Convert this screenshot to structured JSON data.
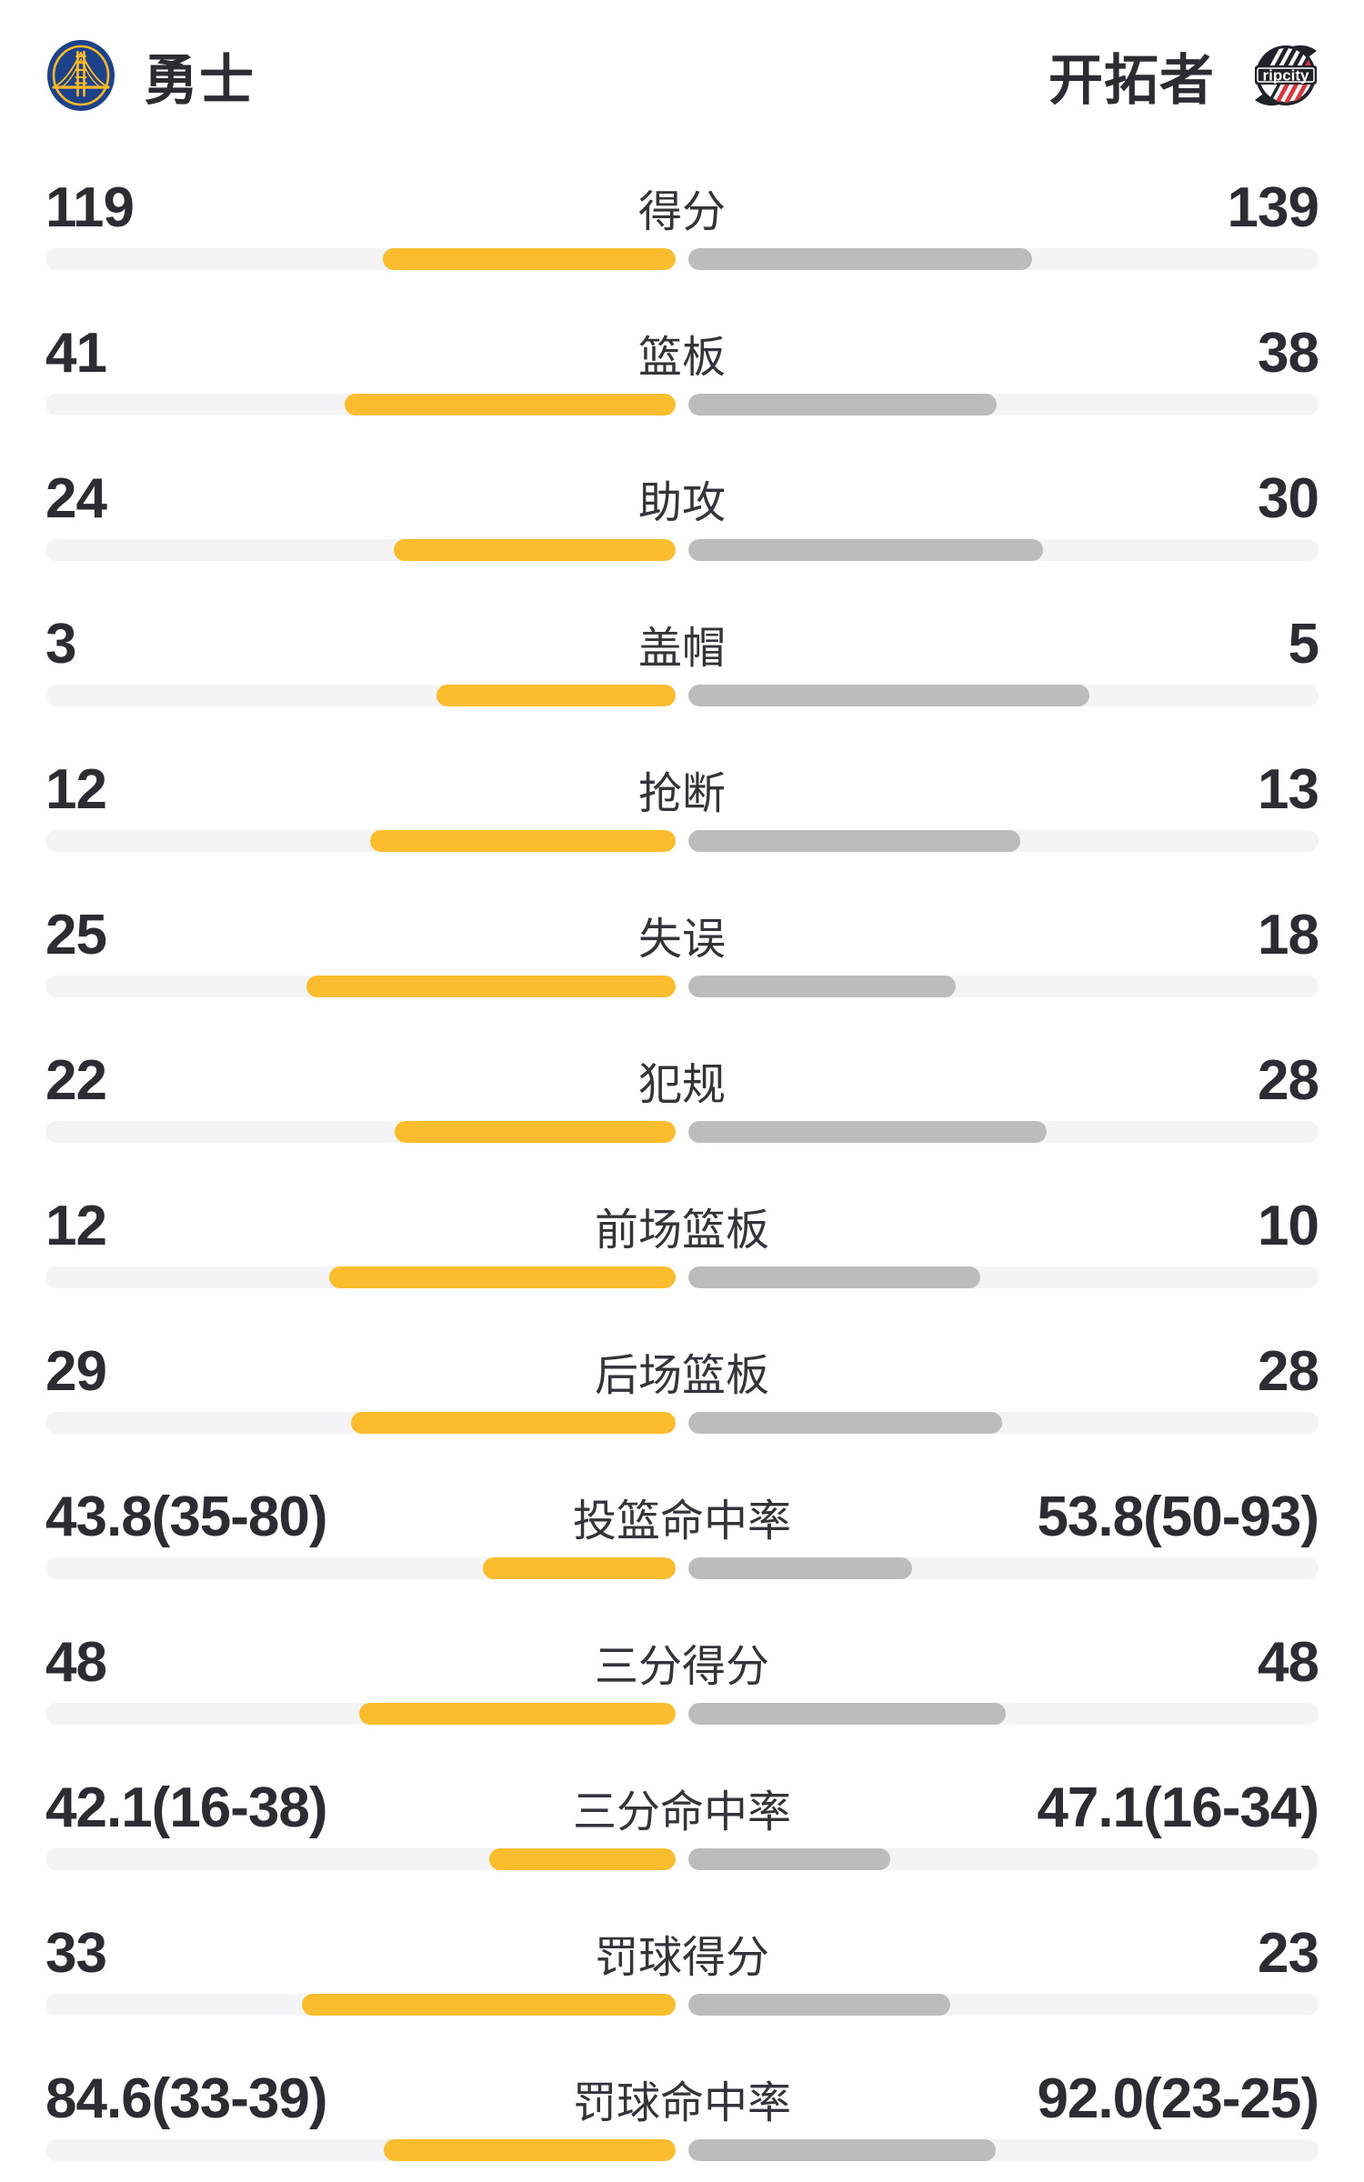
{
  "header": {
    "left_team": {
      "name": "勇士"
    },
    "right_team": {
      "name": "开拓者",
      "logo_text": "ripcity"
    }
  },
  "colors": {
    "home_bar": "#FBBD2E",
    "away_bar": "#BCBCBC",
    "bar_track": "#F4F4F6",
    "text": "#2B2D33",
    "warriors_blue": "#1D428A",
    "warriors_gold": "#FDB927",
    "blazers_red": "#D8373F",
    "blazers_black": "#20242A"
  },
  "chart_data": {
    "type": "bar",
    "legend": [
      "勇士",
      "开拓者"
    ],
    "legend_position": "top",
    "grid": false,
    "categories": [
      "得分",
      "篮板",
      "助攻",
      "盖帽",
      "抢断",
      "失误",
      "犯规",
      "前场篮板",
      "后场篮板",
      "投篮命中率",
      "三分得分",
      "三分命中率",
      "罚球得分",
      "罚球命中率"
    ],
    "series": [
      {
        "name": "勇士",
        "values": [
          119,
          41,
          24,
          3,
          12,
          25,
          22,
          12,
          29,
          43.8,
          48,
          42.1,
          33,
          84.6
        ]
      },
      {
        "name": "开拓者",
        "values": [
          139,
          38,
          30,
          5,
          13,
          18,
          28,
          10,
          28,
          53.8,
          48,
          47.1,
          23,
          92.0
        ]
      }
    ],
    "rows": [
      {
        "label": "得分",
        "left": "119",
        "right": "139",
        "left_pct": 46.5,
        "right_pct": 54.5
      },
      {
        "label": "篮板",
        "left": "41",
        "right": "38",
        "left_pct": 52.5,
        "right_pct": 48.9
      },
      {
        "label": "助攻",
        "left": "24",
        "right": "30",
        "left_pct": 44.7,
        "right_pct": 56.3
      },
      {
        "label": "盖帽",
        "left": "3",
        "right": "5",
        "left_pct": 38.0,
        "right_pct": 63.6
      },
      {
        "label": "抢断",
        "left": "12",
        "right": "13",
        "left_pct": 48.5,
        "right_pct": 52.7
      },
      {
        "label": "失误",
        "left": "25",
        "right": "18",
        "left_pct": 58.6,
        "right_pct": 42.4
      },
      {
        "label": "犯规",
        "left": "22",
        "right": "28",
        "left_pct": 44.6,
        "right_pct": 56.9
      },
      {
        "label": "前场篮板",
        "left": "12",
        "right": "10",
        "left_pct": 55.0,
        "right_pct": 46.3
      },
      {
        "label": "后场篮板",
        "left": "29",
        "right": "28",
        "left_pct": 51.5,
        "right_pct": 49.8
      },
      {
        "label": "投篮命中率",
        "left": "43.8(35-80)",
        "right": "53.8(50-93)",
        "left_pct": 30.6,
        "right_pct": 35.5
      },
      {
        "label": "三分得分",
        "left": "48",
        "right": "48",
        "left_pct": 50.2,
        "right_pct": 50.4
      },
      {
        "label": "三分命中率",
        "left": "42.1(16-38)",
        "right": "47.1(16-34)",
        "left_pct": 29.6,
        "right_pct": 32.0
      },
      {
        "label": "罚球得分",
        "left": "33",
        "right": "23",
        "left_pct": 59.3,
        "right_pct": 41.6
      },
      {
        "label": "罚球命中率",
        "left": "84.6(33-39)",
        "right": "92.0(23-25)",
        "left_pct": 46.3,
        "right_pct": 48.8
      }
    ]
  }
}
